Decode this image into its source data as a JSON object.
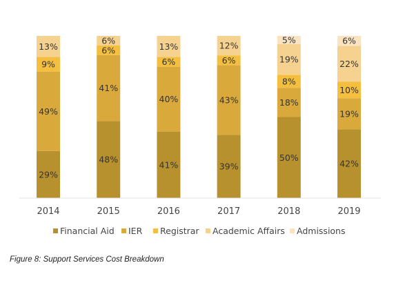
{
  "chart_data": {
    "type": "bar",
    "stacked": true,
    "title": "",
    "xlabel": "",
    "ylabel": "",
    "ylim": [
      0,
      100
    ],
    "grid": false,
    "legend_position": "bottom",
    "categories": [
      "2014",
      "2015",
      "2016",
      "2017",
      "2018",
      "2019"
    ],
    "series": [
      {
        "name": "Financial Aid",
        "color": "#B8912F",
        "values": [
          29,
          48,
          41,
          39,
          50,
          42
        ],
        "labels": [
          "29%",
          "48%",
          "41%",
          "39%",
          "50%",
          "42%"
        ]
      },
      {
        "name": "IER",
        "color": "#D9A93C",
        "values": [
          49,
          41,
          40,
          43,
          18,
          19
        ],
        "labels": [
          "49%",
          "41%",
          "40%",
          "43%",
          "18%",
          "19%"
        ]
      },
      {
        "name": "Registrar",
        "color": "#F4BF3F",
        "values": [
          9,
          6,
          6,
          6,
          8,
          10
        ],
        "labels": [
          "9%",
          "6%",
          "6%",
          "6%",
          "8%",
          "10%"
        ]
      },
      {
        "name": "Academic Affairs",
        "color": "#F6D290",
        "values": [
          13,
          6,
          13,
          12,
          19,
          22
        ],
        "labels": [
          "13%",
          "6%",
          "13%",
          "12%",
          "19%",
          "22%"
        ]
      },
      {
        "name": "Admissions",
        "color": "#FAE3C1",
        "values": [
          0,
          0,
          0,
          0,
          5,
          6
        ],
        "labels": [
          "",
          "",
          "",
          "",
          "5%",
          "6%"
        ]
      }
    ]
  },
  "caption": "Figure 8: Support Services Cost Breakdown"
}
